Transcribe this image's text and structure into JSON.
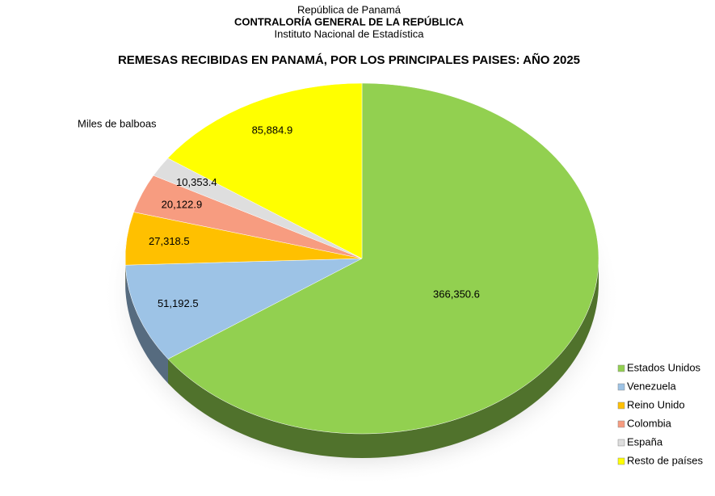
{
  "header": {
    "line1": "República de Panamá",
    "line2": "CONTRALORÍA GENERAL DE LA REPÚBLICA",
    "line3": "Instituto Nacional de Estadística"
  },
  "chart_data": {
    "type": "pie",
    "title": "REMESAS RECIBIDAS EN PANAMÁ, POR LOS PRINCIPALES PAISES: AÑO 2025",
    "subtitle": "Miles de balboas",
    "categories": [
      "Estados Unidos",
      "Venezuela",
      "Reino Unido",
      "Colombia",
      "España",
      "Resto de países"
    ],
    "values": [
      366350.6,
      51192.5,
      27318.5,
      20122.9,
      10353.4,
      85884.9
    ],
    "value_labels": [
      "366,350.6",
      "51,192.5",
      "27,318.5",
      "20,122.9",
      "10,353.4",
      "85,884.9"
    ],
    "colors": [
      "#92d050",
      "#9dc3e6",
      "#ffc000",
      "#f79c80",
      "#dedede",
      "#ffff00"
    ],
    "legend": "right"
  }
}
